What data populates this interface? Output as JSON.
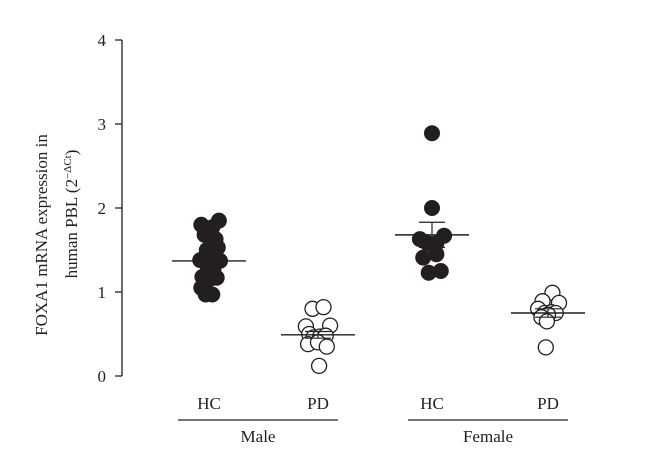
{
  "chart_data": {
    "type": "scatter",
    "ylabel_line1": "FOXA1 mRNA expression in",
    "ylabel_line2_prefix": "human PBL (2",
    "ylabel_superscript": "−ΔCt",
    "ylabel_line2_suffix": ")",
    "ylim": [
      0,
      4
    ],
    "yticks": [
      "0",
      "1",
      "2",
      "3",
      "4"
    ],
    "grid": false,
    "groups": [
      {
        "label": "HC",
        "sex": "Male",
        "marker": "filled",
        "mean": 1.37,
        "sem": 0.05,
        "points": [
          {
            "x": -0.35,
            "y": 1.8
          },
          {
            "x": 0.15,
            "y": 1.77
          },
          {
            "x": 0.45,
            "y": 1.85
          },
          {
            "x": -0.2,
            "y": 1.68
          },
          {
            "x": 0.3,
            "y": 1.63
          },
          {
            "x": -0.1,
            "y": 1.5
          },
          {
            "x": 0.1,
            "y": 1.5
          },
          {
            "x": 0.4,
            "y": 1.53
          },
          {
            "x": 0.25,
            "y": 1.48
          },
          {
            "x": -0.05,
            "y": 1.45
          },
          {
            "x": -0.4,
            "y": 1.38
          },
          {
            "x": -0.15,
            "y": 1.35
          },
          {
            "x": 0.05,
            "y": 1.38
          },
          {
            "x": 0.3,
            "y": 1.35
          },
          {
            "x": 0.5,
            "y": 1.37
          },
          {
            "x": -0.05,
            "y": 1.25
          },
          {
            "x": 0.2,
            "y": 1.25
          },
          {
            "x": -0.3,
            "y": 1.18
          },
          {
            "x": 0.35,
            "y": 1.17
          },
          {
            "x": 0.0,
            "y": 1.15
          },
          {
            "x": -0.35,
            "y": 1.05
          },
          {
            "x": -0.15,
            "y": 0.97
          },
          {
            "x": 0.15,
            "y": 0.97
          }
        ]
      },
      {
        "label": "PD",
        "sex": "Male",
        "marker": "open",
        "mean": 0.49,
        "sem": 0.04,
        "points": [
          {
            "x": -0.25,
            "y": 0.8
          },
          {
            "x": 0.25,
            "y": 0.82
          },
          {
            "x": -0.55,
            "y": 0.59
          },
          {
            "x": 0.55,
            "y": 0.6
          },
          {
            "x": -0.4,
            "y": 0.5
          },
          {
            "x": -0.2,
            "y": 0.46
          },
          {
            "x": 0.1,
            "y": 0.47
          },
          {
            "x": 0.35,
            "y": 0.48
          },
          {
            "x": -0.45,
            "y": 0.38
          },
          {
            "x": 0.0,
            "y": 0.4
          },
          {
            "x": 0.4,
            "y": 0.35
          },
          {
            "x": 0.05,
            "y": 0.12
          }
        ]
      },
      {
        "label": "HC",
        "sex": "Female",
        "marker": "filled",
        "mean": 1.68,
        "sem": 0.15,
        "points": [
          {
            "x": 0.0,
            "y": 2.89
          },
          {
            "x": 0.0,
            "y": 2.0
          },
          {
            "x": -0.55,
            "y": 1.63
          },
          {
            "x": 0.55,
            "y": 1.67
          },
          {
            "x": -0.2,
            "y": 1.58
          },
          {
            "x": 0.2,
            "y": 1.58
          },
          {
            "x": -0.4,
            "y": 1.41
          },
          {
            "x": 0.2,
            "y": 1.45
          },
          {
            "x": -0.15,
            "y": 1.23
          },
          {
            "x": 0.4,
            "y": 1.25
          }
        ]
      },
      {
        "label": "PD",
        "sex": "Female",
        "marker": "open",
        "mean": 0.75,
        "sem": 0.05,
        "points": [
          {
            "x": 0.2,
            "y": 0.99
          },
          {
            "x": -0.25,
            "y": 0.89
          },
          {
            "x": 0.5,
            "y": 0.87
          },
          {
            "x": -0.45,
            "y": 0.8
          },
          {
            "x": -0.15,
            "y": 0.75
          },
          {
            "x": 0.15,
            "y": 0.76
          },
          {
            "x": 0.35,
            "y": 0.75
          },
          {
            "x": 0.0,
            "y": 0.73
          },
          {
            "x": -0.3,
            "y": 0.7
          },
          {
            "x": -0.05,
            "y": 0.65
          },
          {
            "x": -0.1,
            "y": 0.34
          }
        ]
      }
    ],
    "sex_labels": [
      "Male",
      "Female"
    ]
  }
}
